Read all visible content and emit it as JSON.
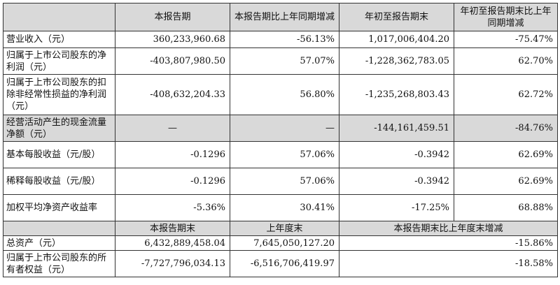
{
  "header": {
    "col_label": "",
    "col1": "本报告期",
    "col2": "本报告期比上年同期增减",
    "col3": "年初至报告期末",
    "col4": "年初至报告期末比上年同期增减"
  },
  "rows": [
    {
      "label": "营业收入（元）",
      "c1": "360,233,960.68",
      "c2": "-56.13%",
      "c3": "1,017,006,404.20",
      "c4": "-75.47%"
    },
    {
      "label": "归属于上市公司股东的净利润（元）",
      "c1": "-403,807,980.50",
      "c2": "57.07%",
      "c3": "-1,228,362,783.05",
      "c4": "62.70%"
    },
    {
      "label": "归属于上市公司股东的扣除非经常性损益的净利润（元）",
      "c1": "-408,632,204.33",
      "c2": "56.80%",
      "c3": "-1,235,268,803.43",
      "c4": "62.72%"
    },
    {
      "label": "经营活动产生的现金流量净额（元）",
      "c1": "—",
      "c2": "—",
      "c3": "-144,161,459.51",
      "c4": "-84.76%"
    },
    {
      "label": "基本每股收益（元/股）",
      "c1": "-0.1296",
      "c2": "57.06%",
      "c3": "-0.3942",
      "c4": "62.69%"
    },
    {
      "label": "稀释每股收益（元/股）",
      "c1": "-0.1296",
      "c2": "57.06%",
      "c3": "-0.3942",
      "c4": "62.69%"
    },
    {
      "label": "加权平均净资产收益率",
      "c1": "-5.36%",
      "c2": "30.41%",
      "c3": "-17.25%",
      "c4": "68.88%"
    }
  ],
  "header2": {
    "col1": "本报告期末",
    "col2": "上年度末",
    "col3": "本报告期末比上年度末增减"
  },
  "rows2": [
    {
      "label": "总资产（元）",
      "c1": "6,432,889,458.04",
      "c2": "7,645,050,127.20",
      "c3": "-15.86%"
    },
    {
      "label": "归属于上市公司股东的所有者权益（元）",
      "c1": "-7,727,796,034.13",
      "c2": "-6,516,706,419.97",
      "c3": "-18.58%"
    }
  ]
}
